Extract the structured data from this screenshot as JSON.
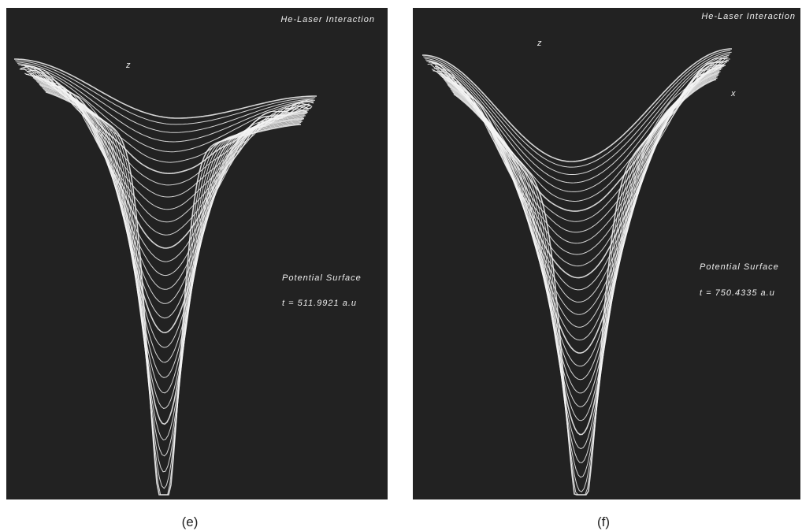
{
  "panels": [
    {
      "title": "He-Laser Interaction",
      "axis_z": "z",
      "surface_label": "Potential Surface",
      "time_label": "t = 511.9921 a.u",
      "caption": "(e)"
    },
    {
      "title": "He-Laser Interaction",
      "axis_z": "z",
      "axis_x": "x",
      "surface_label": "Potential Surface",
      "time_label": "t = 750.4335 a.u",
      "caption": "(f)"
    }
  ]
}
